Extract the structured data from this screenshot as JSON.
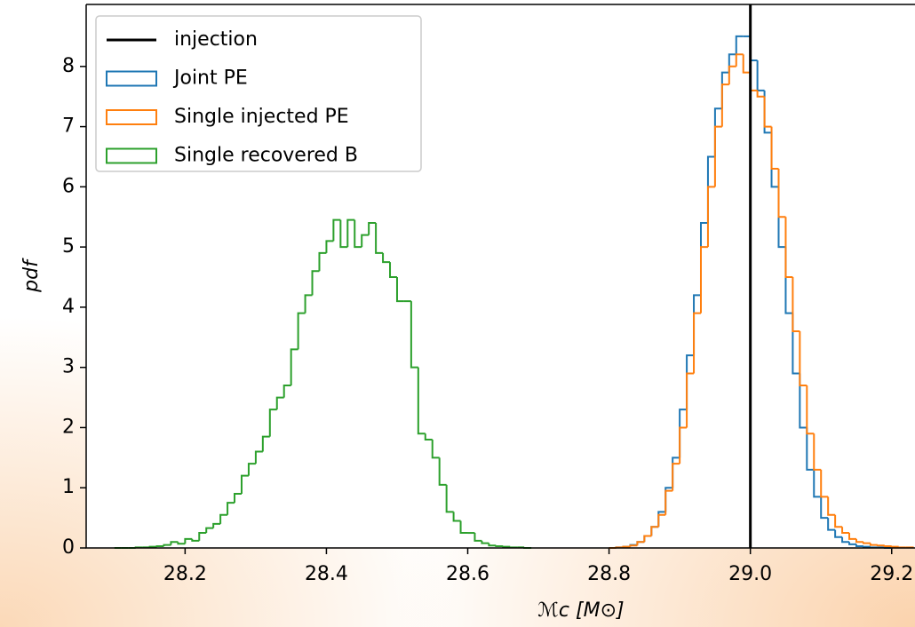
{
  "chart_data": {
    "type": "step_histogram",
    "xlabel": "ℳc [M⊙]",
    "ylabel": "pdf",
    "xlim": [
      28.06,
      29.233
    ],
    "ylim": [
      0,
      9.03
    ],
    "xticks": [
      28.2,
      28.4,
      28.6,
      28.8,
      {
        "value": 29,
        "label": "29.0"
      },
      29.2
    ],
    "yticks": [
      0,
      1,
      2,
      3,
      4,
      5,
      6,
      7,
      8
    ],
    "legend": "upper left",
    "vline": {
      "name": "injection",
      "x": 29,
      "color": "#000000"
    },
    "series": [
      {
        "name": "Joint PE",
        "color": "#1f77b4",
        "bins": [
          28.8,
          28.81,
          28.82,
          28.83,
          28.84,
          28.85,
          28.86,
          28.87,
          28.88,
          28.89,
          28.9,
          28.91,
          28.92,
          28.93,
          28.94,
          28.95,
          28.96,
          28.97,
          28.98,
          28.99,
          29.0,
          29.01,
          29.02,
          29.03,
          29.04,
          29.05,
          29.06,
          29.07,
          29.08,
          29.09,
          29.1,
          29.11,
          29.12,
          29.13,
          29.14,
          29.15,
          29.16,
          29.17,
          29.18,
          29.19,
          29.2
        ],
        "values": [
          0,
          0.01,
          0.02,
          0.05,
          0.1,
          0.2,
          0.35,
          0.6,
          1.0,
          1.5,
          2.3,
          3.2,
          4.2,
          5.4,
          6.5,
          7.3,
          7.9,
          8.2,
          8.5,
          8.5,
          8.1,
          7.6,
          6.9,
          6.0,
          5.0,
          3.9,
          2.9,
          2.0,
          1.3,
          0.85,
          0.5,
          0.3,
          0.18,
          0.1,
          0.06,
          0.03,
          0.02,
          0.01,
          0.01,
          0
        ]
      },
      {
        "name": "Single injected PE",
        "color": "#ff7f0e",
        "bins": [
          28.8,
          28.81,
          28.82,
          28.83,
          28.84,
          28.85,
          28.86,
          28.87,
          28.88,
          28.89,
          28.9,
          28.91,
          28.92,
          28.93,
          28.94,
          28.95,
          28.96,
          28.97,
          28.98,
          28.99,
          29.0,
          29.01,
          29.02,
          29.03,
          29.04,
          29.05,
          29.06,
          29.07,
          29.08,
          29.09,
          29.1,
          29.11,
          29.12,
          29.13,
          29.14,
          29.15,
          29.16,
          29.17,
          29.18,
          29.19,
          29.2,
          29.21,
          29.22,
          29.23
        ],
        "values": [
          0,
          0.01,
          0.02,
          0.04,
          0.1,
          0.2,
          0.35,
          0.55,
          0.95,
          1.4,
          2.0,
          2.9,
          3.9,
          5.0,
          6.0,
          7.0,
          7.7,
          8.0,
          8.2,
          7.9,
          7.6,
          7.5,
          7.0,
          6.3,
          5.5,
          4.5,
          3.6,
          2.7,
          1.9,
          1.3,
          0.85,
          0.55,
          0.35,
          0.25,
          0.15,
          0.1,
          0.08,
          0.05,
          0.04,
          0.03,
          0.02,
          0.01,
          0.01
        ]
      },
      {
        "name": "Single recovered B",
        "color": "#2ca02c",
        "bins": [
          28.1,
          28.11,
          28.12,
          28.13,
          28.14,
          28.15,
          28.16,
          28.17,
          28.18,
          28.19,
          28.2,
          28.21,
          28.22,
          28.23,
          28.24,
          28.25,
          28.26,
          28.27,
          28.28,
          28.29,
          28.3,
          28.31,
          28.32,
          28.33,
          28.34,
          28.35,
          28.36,
          28.37,
          28.38,
          28.39,
          28.4,
          28.41,
          28.42,
          28.43,
          28.44,
          28.45,
          28.46,
          28.47,
          28.48,
          28.49,
          28.5,
          28.51,
          28.52,
          28.53,
          28.54,
          28.55,
          28.56,
          28.57,
          28.58,
          28.59,
          28.6,
          28.61,
          28.62,
          28.63,
          28.64,
          28.65,
          28.66,
          28.67,
          28.68,
          28.69
        ],
        "values": [
          0,
          0,
          0,
          0.01,
          0.01,
          0.02,
          0.03,
          0.05,
          0.1,
          0.07,
          0.15,
          0.12,
          0.25,
          0.33,
          0.4,
          0.55,
          0.75,
          0.9,
          1.2,
          1.4,
          1.6,
          1.85,
          2.3,
          2.5,
          2.7,
          3.3,
          3.9,
          4.2,
          4.6,
          4.9,
          5.1,
          5.45,
          5.0,
          5.45,
          5.0,
          5.2,
          5.4,
          4.9,
          4.75,
          4.5,
          4.1,
          4.1,
          3.0,
          1.9,
          1.8,
          1.5,
          1.05,
          0.6,
          0.45,
          0.25,
          0.25,
          0.12,
          0.08,
          0.04,
          0.03,
          0.02,
          0.01,
          0.01,
          0
        ]
      }
    ]
  }
}
